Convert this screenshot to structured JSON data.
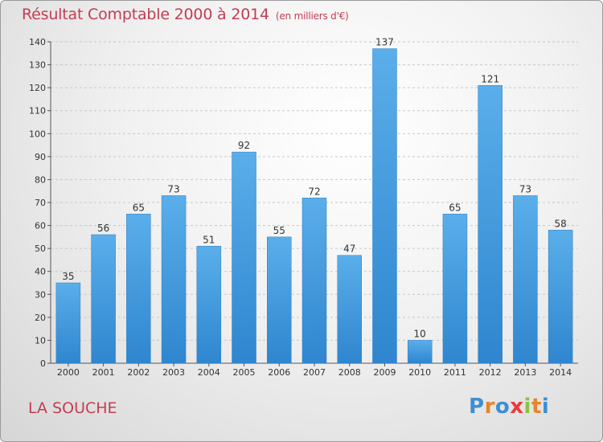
{
  "chart_data": {
    "type": "bar",
    "title": "Résultat Comptable 2000 à 2014",
    "subtitle": "(en milliers d'€)",
    "categories": [
      "2000",
      "2001",
      "2002",
      "2003",
      "2004",
      "2005",
      "2006",
      "2007",
      "2008",
      "2009",
      "2010",
      "2011",
      "2012",
      "2013",
      "2014"
    ],
    "values": [
      35,
      56,
      65,
      73,
      51,
      92,
      55,
      72,
      47,
      137,
      10,
      65,
      121,
      73,
      58
    ],
    "ylim": [
      0,
      140
    ],
    "yticks": [
      0,
      10,
      20,
      30,
      40,
      50,
      60,
      70,
      80,
      90,
      100,
      110,
      120,
      130,
      140
    ],
    "xlabel": "",
    "ylabel": "",
    "grid": true,
    "bar_color": "#4a9de0",
    "label": "LA SOUCHE"
  },
  "branding": {
    "logo_text": "Proxiti",
    "logo_colors": [
      "#3b8fd4",
      "#e8842a",
      "#3b8fd4",
      "#e83b3b",
      "#8bc43f",
      "#e8842a",
      "#3b8fd4"
    ]
  }
}
